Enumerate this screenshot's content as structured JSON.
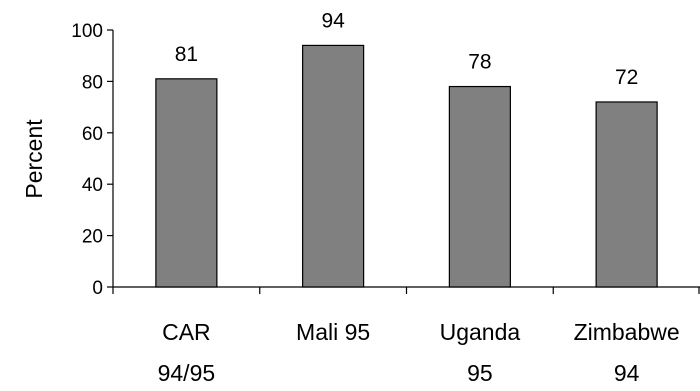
{
  "chart_data": {
    "type": "bar",
    "title": "",
    "xlabel": "",
    "ylabel": "Percent",
    "ylim": [
      0,
      100
    ],
    "yticks": [
      0,
      20,
      40,
      60,
      80,
      100
    ],
    "ytick_labels": [
      "0",
      "20",
      "40",
      "60",
      "80",
      "100"
    ],
    "categories": [
      [
        "CAR",
        "94/95"
      ],
      [
        "Mali 95"
      ],
      [
        "Uganda",
        "95"
      ],
      [
        "Zimbabwe",
        "94"
      ]
    ],
    "values": [
      81,
      94,
      78,
      72
    ],
    "data_labels": [
      "81",
      "94",
      "78",
      "72"
    ],
    "grid": false,
    "legend": "none",
    "bar_color": "#808080",
    "bar_edge_color": "#000000"
  }
}
